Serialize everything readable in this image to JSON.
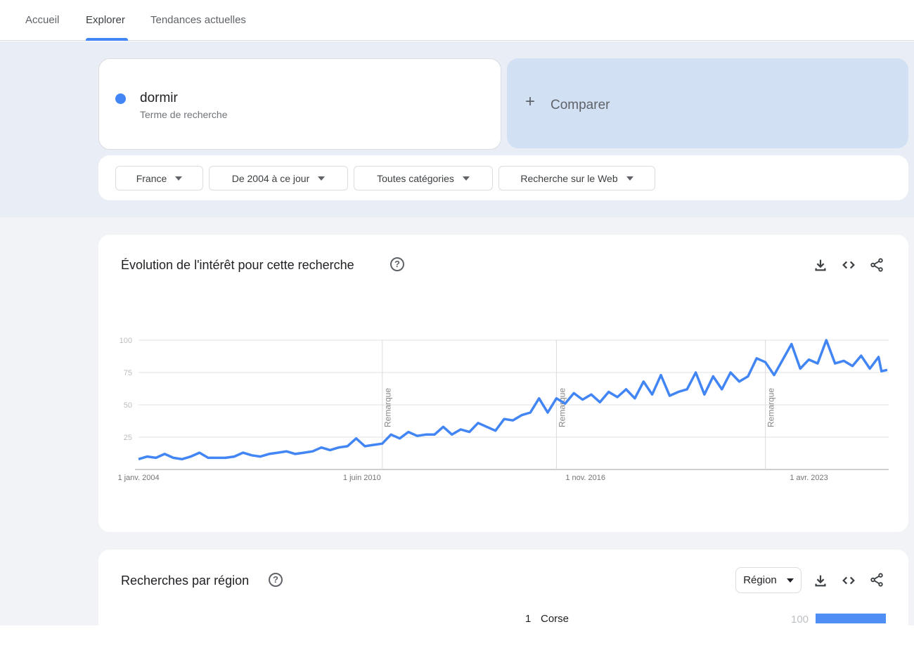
{
  "nav": {
    "tabs": [
      {
        "label": "Accueil"
      },
      {
        "label": "Explorer",
        "active": true
      },
      {
        "label": "Tendances actuelles"
      }
    ]
  },
  "term": {
    "name": "dormir",
    "subtitle": "Terme de recherche",
    "color": "#4285f4"
  },
  "compare": {
    "label": "Comparer",
    "icon": "plus-icon"
  },
  "filters": [
    {
      "label": "France"
    },
    {
      "label": "De 2004 à ce jour"
    },
    {
      "label": "Toutes catégories"
    },
    {
      "label": "Recherche sur le Web"
    }
  ],
  "interest": {
    "title": "Évolution de l'intérêt pour cette recherche",
    "help": "?",
    "icons": [
      "download-icon",
      "embed-code-icon",
      "share-icon"
    ]
  },
  "chart_data": {
    "type": "line",
    "title": "",
    "ylim": [
      0,
      100
    ],
    "yticks": [
      "25",
      "50",
      "75",
      "100"
    ],
    "ytick_values": [
      25,
      50,
      75,
      100
    ],
    "xlim": [
      "2004-01",
      "2025-07"
    ],
    "xticks": [
      {
        "label": "1 janv. 2004",
        "date": "2004-01"
      },
      {
        "label": "1 juin 2010",
        "date": "2010-06"
      },
      {
        "label": "1 nov. 2016",
        "date": "2016-11"
      },
      {
        "label": "1 avr. 2023",
        "date": "2023-04"
      }
    ],
    "annotations": [
      {
        "label": "Remarque",
        "date": "2011-01"
      },
      {
        "label": "Remarque",
        "date": "2016-01"
      },
      {
        "label": "Remarque",
        "date": "2022-01"
      }
    ],
    "grid": true,
    "series": [
      {
        "color": "#4285f4",
        "points": [
          [
            "2004-01",
            8
          ],
          [
            "2004-04",
            10
          ],
          [
            "2004-07",
            9
          ],
          [
            "2004-10",
            12
          ],
          [
            "2005-01",
            9
          ],
          [
            "2005-04",
            8
          ],
          [
            "2005-07",
            10
          ],
          [
            "2005-10",
            13
          ],
          [
            "2006-01",
            9
          ],
          [
            "2006-04",
            9
          ],
          [
            "2006-07",
            9
          ],
          [
            "2006-10",
            10
          ],
          [
            "2007-01",
            13
          ],
          [
            "2007-04",
            11
          ],
          [
            "2007-07",
            10
          ],
          [
            "2007-10",
            12
          ],
          [
            "2008-01",
            13
          ],
          [
            "2008-04",
            14
          ],
          [
            "2008-07",
            12
          ],
          [
            "2008-10",
            13
          ],
          [
            "2009-01",
            14
          ],
          [
            "2009-04",
            17
          ],
          [
            "2009-07",
            15
          ],
          [
            "2009-10",
            17
          ],
          [
            "2010-01",
            18
          ],
          [
            "2010-04",
            24
          ],
          [
            "2010-07",
            18
          ],
          [
            "2010-10",
            19
          ],
          [
            "2011-01",
            20
          ],
          [
            "2011-04",
            27
          ],
          [
            "2011-07",
            24
          ],
          [
            "2011-10",
            29
          ],
          [
            "2012-01",
            26
          ],
          [
            "2012-04",
            27
          ],
          [
            "2012-07",
            27
          ],
          [
            "2012-10",
            33
          ],
          [
            "2013-01",
            27
          ],
          [
            "2013-04",
            31
          ],
          [
            "2013-07",
            29
          ],
          [
            "2013-10",
            36
          ],
          [
            "2014-01",
            33
          ],
          [
            "2014-04",
            30
          ],
          [
            "2014-07",
            39
          ],
          [
            "2014-10",
            38
          ],
          [
            "2015-01",
            42
          ],
          [
            "2015-04",
            44
          ],
          [
            "2015-07",
            55
          ],
          [
            "2015-10",
            44
          ],
          [
            "2016-01",
            55
          ],
          [
            "2016-04",
            51
          ],
          [
            "2016-07",
            59
          ],
          [
            "2016-10",
            54
          ],
          [
            "2017-01",
            58
          ],
          [
            "2017-04",
            52
          ],
          [
            "2017-07",
            60
          ],
          [
            "2017-10",
            56
          ],
          [
            "2018-01",
            62
          ],
          [
            "2018-04",
            55
          ],
          [
            "2018-07",
            68
          ],
          [
            "2018-10",
            58
          ],
          [
            "2019-01",
            73
          ],
          [
            "2019-04",
            57
          ],
          [
            "2019-07",
            60
          ],
          [
            "2019-10",
            62
          ],
          [
            "2020-01",
            75
          ],
          [
            "2020-04",
            58
          ],
          [
            "2020-07",
            72
          ],
          [
            "2020-10",
            62
          ],
          [
            "2021-01",
            75
          ],
          [
            "2021-04",
            68
          ],
          [
            "2021-07",
            72
          ],
          [
            "2021-10",
            86
          ],
          [
            "2022-01",
            83
          ],
          [
            "2022-04",
            73
          ],
          [
            "2022-07",
            85
          ],
          [
            "2022-10",
            97
          ],
          [
            "2023-01",
            78
          ],
          [
            "2023-04",
            85
          ],
          [
            "2023-07",
            82
          ],
          [
            "2023-10",
            100
          ],
          [
            "2024-01",
            82
          ],
          [
            "2024-04",
            84
          ],
          [
            "2024-07",
            80
          ],
          [
            "2024-10",
            88
          ],
          [
            "2025-01",
            78
          ],
          [
            "2025-04",
            87
          ],
          [
            "2025-05",
            76
          ],
          [
            "2025-07",
            77
          ]
        ]
      }
    ]
  },
  "region": {
    "title": "Recherches par région",
    "help": "?",
    "select": "Région",
    "rows": [
      {
        "rank": "1",
        "name": "Corse",
        "value": "100",
        "fraction": 1.0
      }
    ]
  }
}
